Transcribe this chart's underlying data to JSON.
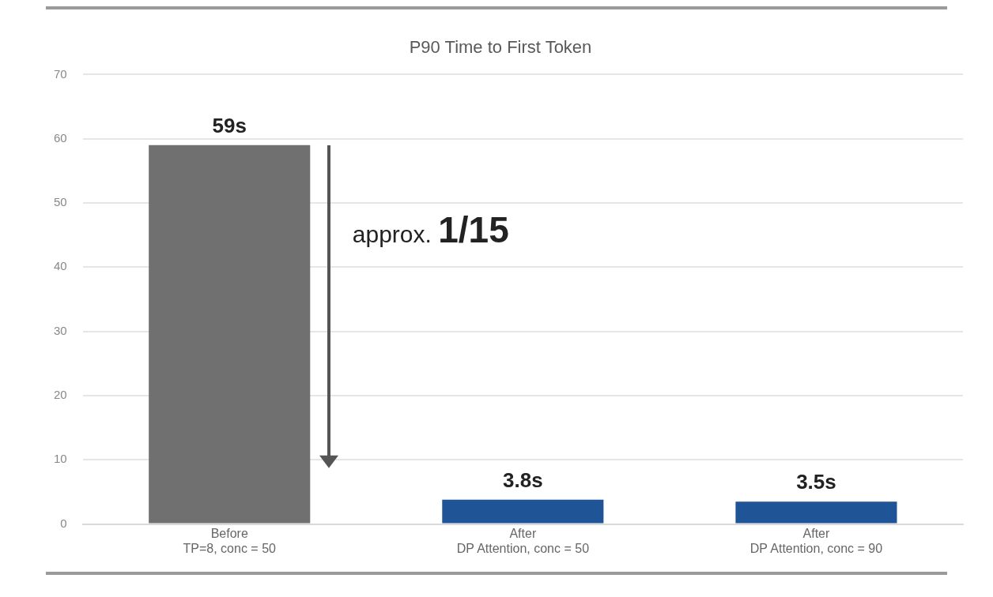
{
  "chart_data": {
    "type": "bar",
    "title": "P90 Time to First Token",
    "categories": [
      "Before\nTP=8, conc = 50",
      "After\nDP Attention, conc = 50",
      "After\nDP Attention, conc = 90"
    ],
    "values": [
      59,
      3.8,
      3.5
    ],
    "colors": [
      "#707070",
      "#1f5597",
      "#1f5597"
    ],
    "value_labels": [
      "59s",
      "3.8s",
      "3.5s"
    ],
    "ylim": [
      0,
      70
    ],
    "yticks": [
      0,
      10,
      20,
      30,
      40,
      50,
      60,
      70
    ],
    "grid": "y",
    "legend": false,
    "annotations": [
      "approx. 1/15"
    ]
  }
}
